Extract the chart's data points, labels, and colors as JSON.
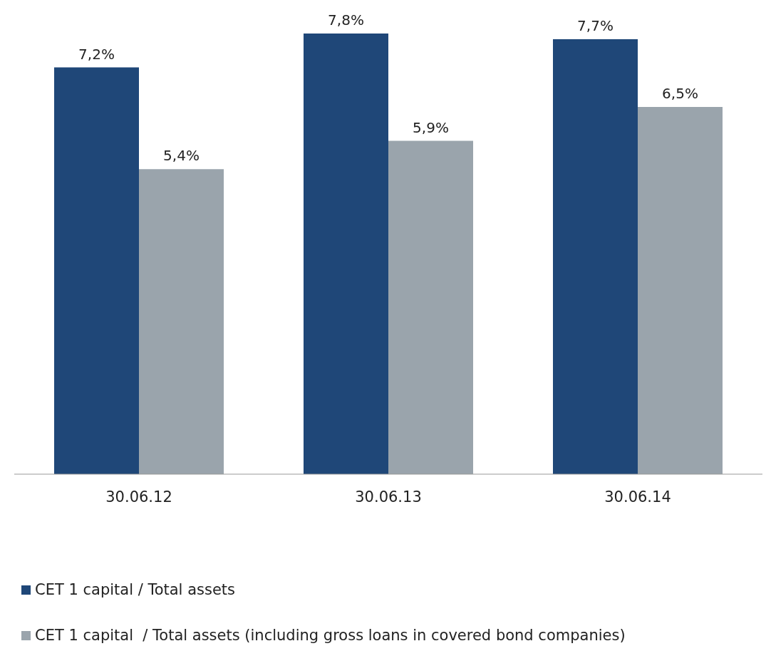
{
  "chart_data": {
    "type": "bar",
    "categories": [
      "30.06.12",
      "30.06.13",
      "30.06.14"
    ],
    "series": [
      {
        "name": "CET 1 capital / Total assets",
        "color": "#1f4778",
        "values": [
          7.2,
          7.8,
          7.7
        ],
        "value_labels": [
          "7,2%",
          "7,8%",
          "7,7%"
        ]
      },
      {
        "name": "CET 1 capital  / Total assets (including gross loans in covered bond companies)",
        "color": "#9aa4ac",
        "values": [
          5.4,
          5.9,
          6.5
        ],
        "value_labels": [
          "5,4%",
          "5,9%",
          "6,5%"
        ]
      }
    ],
    "legend": "bottom left",
    "grid": false
  }
}
